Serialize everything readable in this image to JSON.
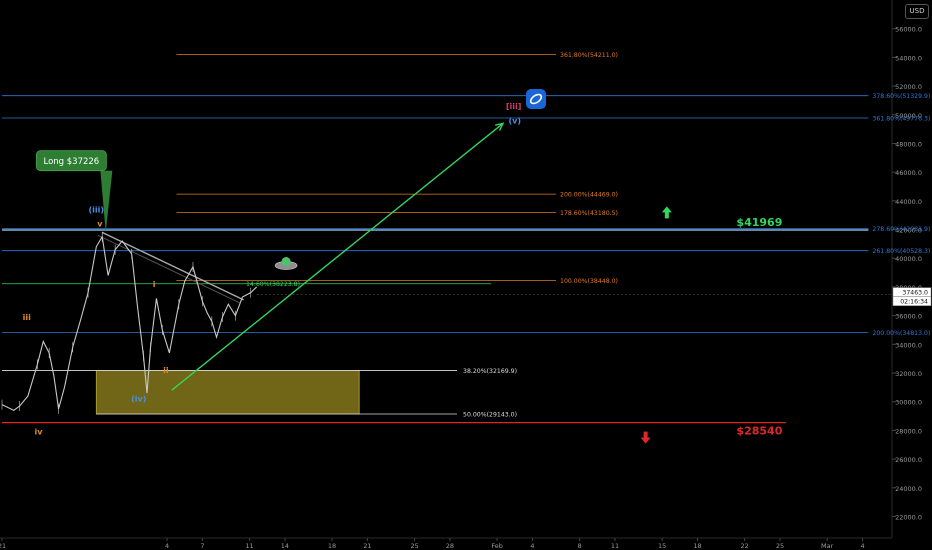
{
  "colors": {
    "background": "#000000",
    "axis_text": "#9a9a9a",
    "fib_orange": "#e07b1f",
    "fib_blue": "#2f78d8",
    "green": "#31d65e",
    "red": "#e0262a",
    "yellow_box": "#8a7d1c",
    "white": "#dddddd",
    "wave_orange": "#e08a2a",
    "wave_blue": "#4b8fe2",
    "price": "#c8c8c8",
    "callout": "#2d7d33"
  },
  "currency": "USD",
  "chart_data": {
    "type": "line",
    "ylim": [
      20500,
      58000
    ],
    "y_ticks": [
      22000,
      24000,
      26000,
      28000,
      30000,
      32000,
      34000,
      36000,
      38000,
      40000,
      42000,
      44000,
      46000,
      48000,
      50000,
      52000,
      54000,
      56000
    ],
    "y_tick_labels": [
      "22000.0",
      "24000.0",
      "26000.0",
      "28000.0",
      "30000.0",
      "32000.0",
      "34000.0",
      "36000.0",
      "38000.0",
      "40000.0",
      "42000.0",
      "44000.0",
      "46000.0",
      "48000.0",
      "50000.0",
      "52000.0",
      "54000.0",
      "56000.0"
    ],
    "x_ticks": [
      {
        "label": "21",
        "d": 0
      },
      {
        "label": "4",
        "d": 14
      },
      {
        "label": "7",
        "d": 17
      },
      {
        "label": "11",
        "d": 21
      },
      {
        "label": "14",
        "d": 24
      },
      {
        "label": "18",
        "d": 28
      },
      {
        "label": "21",
        "d": 31
      },
      {
        "label": "25",
        "d": 35
      },
      {
        "label": "28",
        "d": 38
      },
      {
        "label": "Feb",
        "d": 42
      },
      {
        "label": "4",
        "d": 45
      },
      {
        "label": "8",
        "d": 49
      },
      {
        "label": "11",
        "d": 52
      },
      {
        "label": "15",
        "d": 56
      },
      {
        "label": "18",
        "d": 59
      },
      {
        "label": "22",
        "d": 63
      },
      {
        "label": "25",
        "d": 66
      },
      {
        "label": "Mar",
        "d": 70
      },
      {
        "label": "4",
        "d": 73
      }
    ],
    "xlim": [
      0,
      75.5
    ],
    "series": [
      {
        "points": [
          [
            0,
            29800
          ],
          [
            1,
            29400
          ],
          [
            1.5,
            29700
          ],
          [
            2.2,
            30400
          ],
          [
            3,
            32600
          ],
          [
            3.5,
            34200
          ],
          [
            4,
            33400
          ],
          [
            4.4,
            31800
          ],
          [
            4.8,
            29500
          ],
          [
            5.3,
            31000
          ],
          [
            6,
            33800
          ],
          [
            6.7,
            35800
          ],
          [
            7.3,
            37600
          ],
          [
            8,
            40800
          ],
          [
            8.5,
            41500
          ],
          [
            9,
            38800
          ],
          [
            9.6,
            40600
          ],
          [
            10.2,
            41200
          ],
          [
            11,
            40300
          ],
          [
            11.5,
            36600
          ],
          [
            12,
            33200
          ],
          [
            12.3,
            30600
          ],
          [
            12.6,
            33800
          ],
          [
            13.1,
            37200
          ],
          [
            13.6,
            35000
          ],
          [
            14.2,
            33400
          ],
          [
            15,
            36800
          ],
          [
            15.5,
            38400
          ],
          [
            16.2,
            39400
          ],
          [
            16.6,
            38200
          ],
          [
            17,
            37000
          ],
          [
            17.4,
            36200
          ],
          [
            17.8,
            35600
          ],
          [
            18.2,
            34500
          ],
          [
            18.7,
            35900
          ],
          [
            19.2,
            36800
          ],
          [
            19.8,
            36000
          ],
          [
            20.4,
            37300
          ],
          [
            21.1,
            37600
          ],
          [
            21.6,
            38000
          ]
        ]
      }
    ],
    "fib_levels": [
      {
        "label": "361.80%(54211.0)",
        "value": 54211,
        "color": "orange",
        "x0": 14.8,
        "x1": 47
      },
      {
        "label": "378.60%(51329.9)",
        "value": 51330,
        "color": "blue",
        "x0": 0,
        "x1": 73.5
      },
      {
        "label": "361.80%(49776.3)",
        "value": 49776,
        "color": "blue",
        "x0": 0,
        "x1": 73.5
      },
      {
        "label": "200.00%(44469.0)",
        "value": 44469,
        "color": "orange",
        "x0": 14.8,
        "x1": 47
      },
      {
        "label": "178.60%(43180.5)",
        "value": 43180,
        "color": "orange",
        "x0": 14.8,
        "x1": 47
      },
      {
        "label": "278.60%(42081.9)",
        "value": 42082,
        "color": "blue",
        "x0": 0,
        "x1": 73.5
      },
      {
        "label": "261.80%(40528.3)",
        "value": 40528,
        "color": "blue",
        "x0": 0,
        "x1": 73.5
      },
      {
        "label": "100.00%(38448.0)",
        "value": 38448,
        "color": "orange",
        "x0": 14.8,
        "x1": 47
      },
      {
        "label": "14.60%(38223.8)",
        "value": 38224,
        "color": "green",
        "x0": 0,
        "x1": 41.5
      },
      {
        "label": "200.00%(34813.0)",
        "value": 34813,
        "color": "blue",
        "x0": 0,
        "x1": 73.5
      },
      {
        "label": "38.20%(32169.9)",
        "value": 32170,
        "color": "white",
        "x0": 0,
        "x1": 38.6
      },
      {
        "label": "50.00%(29143.0)",
        "value": 29143,
        "color": "white",
        "x0": 8,
        "x1": 38.6
      }
    ],
    "support_line": {
      "value": 28540,
      "label": "$28540",
      "x0": 0,
      "x1": 66.5
    },
    "resistance_line": {
      "value": 41969,
      "label": "$41969",
      "x0": 0,
      "x1": 73.5
    },
    "zone": {
      "x0": 8,
      "x1": 30.3,
      "y0": 29143,
      "y1": 32170
    },
    "trendline_green": {
      "from": [
        14.4,
        30800
      ],
      "to": [
        42.5,
        49400
      ]
    },
    "trendline_down": {
      "from": [
        8.5,
        41800
      ],
      "to": [
        20.5,
        37100
      ]
    },
    "callout": {
      "label": "Long $37226",
      "x": 5.8,
      "y": 46800
    },
    "wave_labels": [
      {
        "text": "iii",
        "x": 2.1,
        "y": 35700,
        "color": "orange"
      },
      {
        "text": "iv",
        "x": 3.1,
        "y": 27700,
        "color": "orange"
      },
      {
        "text": "(iii)",
        "x": 8.0,
        "y": 43200,
        "color": "blue"
      },
      {
        "text": "v",
        "x": 8.3,
        "y": 42200,
        "color": "orange"
      },
      {
        "text": "(iv)",
        "x": 11.6,
        "y": 30000,
        "color": "blue"
      },
      {
        "text": "i",
        "x": 12.9,
        "y": 38000,
        "color": "orange"
      },
      {
        "text": "ii",
        "x": 13.9,
        "y": 32000,
        "color": "orange"
      },
      {
        "text": "[iii]",
        "x": 43.4,
        "y": 50400,
        "color": "red"
      },
      {
        "text": "(v)",
        "x": 43.5,
        "y": 49400,
        "color": "blue"
      }
    ],
    "price_label": "37463.0",
    "countdown_label": "02:16:34",
    "current_price": 37463,
    "arrow_up": {
      "x": 56.4,
      "y": 43200
    },
    "arrow_down": {
      "x": 54.6,
      "y": 27500
    },
    "ufo": {
      "x": 24.1,
      "y": 39700
    },
    "portal": {
      "x": 45.3,
      "y": 51100
    }
  }
}
